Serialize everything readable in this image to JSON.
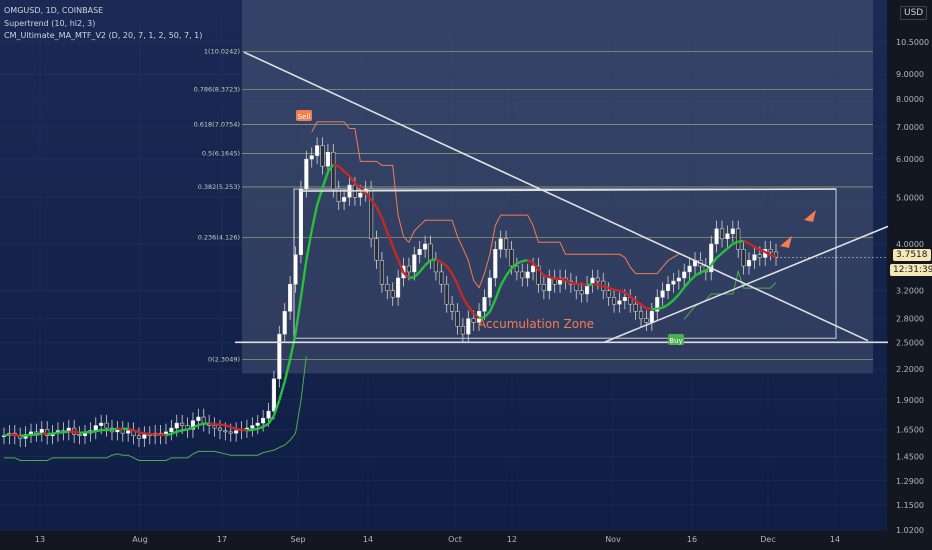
{
  "header": {
    "symbol_line": "OMGUSD, 1D, COINBASE",
    "indicator_1": "Supertrend (10, hl2, 3)",
    "indicator_2": "CM_Ultimate_MA_MTF_V2 (D, 20, 7, 1, 2, 50, 7, 1)"
  },
  "currency_button": "USD",
  "price_badges": {
    "last_price": "3.7518",
    "countdown": "12:31:39"
  },
  "annotations": {
    "zone_label": "Accumulation Zone",
    "sell_label": "Sell",
    "buy_label": "Buy"
  },
  "colors": {
    "background": "#131722",
    "up_candle": "#ffffff",
    "down_candle": "#2a2e39",
    "supertrend_up": "#4caf50",
    "supertrend_down": "#f57c4f",
    "ma_up": "#26c13a",
    "ma_down": "#c62828",
    "zone_label": "#f57c4f",
    "fib_lines": "#8a9a6c",
    "trend_lines": "#e0e0e0",
    "countdown_badge": "#f5e6b3",
    "price_badge": "#f5e6b3"
  },
  "chart_data": {
    "type": "candlestick",
    "y_scale": "log",
    "ylim": [
      1.02,
      12.0
    ],
    "y_ticks": [
      "10.5000",
      "9.0000",
      "8.0000",
      "7.0000",
      "6.0000",
      "5.0000",
      "4.0000",
      "3.2000",
      "2.8000",
      "2.5000",
      "2.2000",
      "1.9000",
      "1.6500",
      "1.4500",
      "1.2900",
      "1.1500",
      "1.0200"
    ],
    "x_ticks": [
      "13",
      "Aug",
      "17",
      "Sep",
      "14",
      "Oct",
      "12",
      "Nov",
      "16",
      "Dec",
      "14"
    ],
    "fib_levels": [
      {
        "label": "1(10.0242)",
        "value": 10.0242
      },
      {
        "label": "0.786(8.3723)",
        "value": 8.3723
      },
      {
        "label": "0.618(7.0754)",
        "value": 7.0754
      },
      {
        "label": "0.5(6.1645)",
        "value": 6.1645
      },
      {
        "label": "0.382(5.253)",
        "value": 5.253
      },
      {
        "label": "0.236(4.126)",
        "value": 4.126
      },
      {
        "label": "0(2.3049)",
        "value": 2.3049
      }
    ],
    "candles_close_estimate": [
      1.6,
      1.62,
      1.6,
      1.58,
      1.61,
      1.63,
      1.62,
      1.65,
      1.6,
      1.62,
      1.64,
      1.63,
      1.66,
      1.61,
      1.6,
      1.62,
      1.64,
      1.68,
      1.7,
      1.66,
      1.63,
      1.65,
      1.62,
      1.64,
      1.6,
      1.58,
      1.61,
      1.6,
      1.62,
      1.6,
      1.63,
      1.66,
      1.7,
      1.68,
      1.65,
      1.72,
      1.75,
      1.7,
      1.68,
      1.66,
      1.64,
      1.63,
      1.62,
      1.64,
      1.65,
      1.66,
      1.68,
      1.7,
      1.74,
      1.8,
      2.1,
      2.6,
      2.9,
      3.3,
      3.8,
      5.2,
      6.0,
      6.1,
      6.4,
      5.8,
      6.2,
      5.2,
      4.9,
      5.0,
      5.3,
      5.0,
      5.1,
      5.2,
      4.1,
      3.7,
      3.3,
      3.2,
      3.1,
      3.4,
      3.6,
      3.5,
      3.8,
      3.9,
      4.0,
      3.7,
      3.5,
      3.3,
      3.0,
      2.9,
      2.7,
      2.6,
      2.8,
      2.75,
      2.9,
      3.1,
      3.4,
      3.9,
      4.1,
      3.9,
      3.6,
      3.5,
      3.4,
      3.5,
      3.6,
      3.3,
      3.2,
      3.4,
      3.3,
      3.4,
      3.35,
      3.3,
      3.2,
      3.15,
      3.3,
      3.4,
      3.35,
      3.2,
      3.1,
      3.0,
      3.05,
      3.1,
      3.0,
      2.9,
      2.8,
      2.75,
      2.9,
      3.1,
      3.2,
      3.3,
      3.35,
      3.4,
      3.5,
      3.6,
      3.7,
      3.6,
      3.5,
      4.0,
      4.3,
      4.1,
      4.2,
      4.3,
      3.9,
      3.6,
      3.7,
      3.8,
      3.75,
      3.9,
      3.85,
      3.75
    ]
  }
}
